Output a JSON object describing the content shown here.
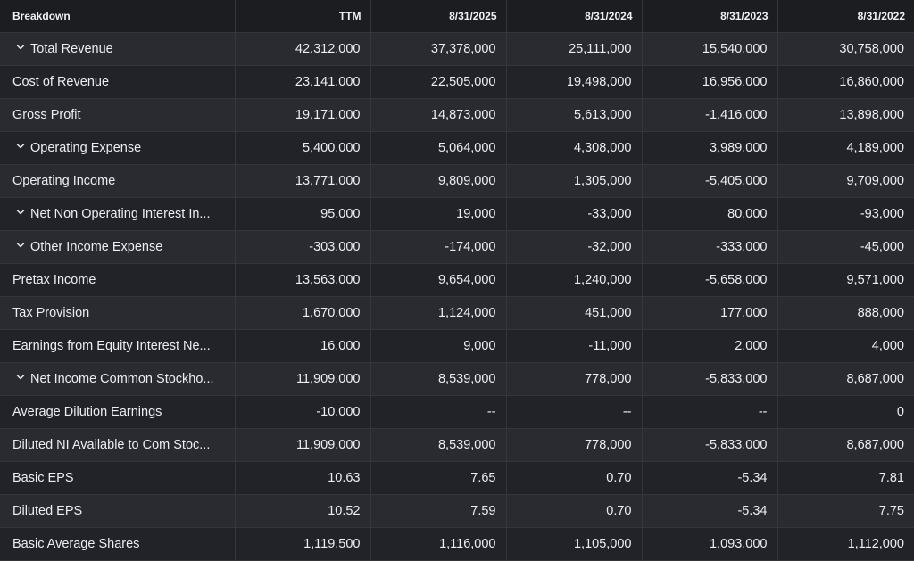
{
  "table": {
    "headers": [
      "Breakdown",
      "TTM",
      "8/31/2025",
      "8/31/2024",
      "8/31/2023",
      "8/31/2022"
    ],
    "rows": [
      {
        "label": "Total Revenue",
        "expandable": true,
        "values": [
          "42,312,000",
          "37,378,000",
          "25,111,000",
          "15,540,000",
          "30,758,000"
        ]
      },
      {
        "label": "Cost of Revenue",
        "expandable": false,
        "values": [
          "23,141,000",
          "22,505,000",
          "19,498,000",
          "16,956,000",
          "16,860,000"
        ]
      },
      {
        "label": "Gross Profit",
        "expandable": false,
        "values": [
          "19,171,000",
          "14,873,000",
          "5,613,000",
          "-1,416,000",
          "13,898,000"
        ]
      },
      {
        "label": "Operating Expense",
        "expandable": true,
        "values": [
          "5,400,000",
          "5,064,000",
          "4,308,000",
          "3,989,000",
          "4,189,000"
        ]
      },
      {
        "label": "Operating Income",
        "expandable": false,
        "values": [
          "13,771,000",
          "9,809,000",
          "1,305,000",
          "-5,405,000",
          "9,709,000"
        ]
      },
      {
        "label": "Net Non Operating Interest In...",
        "expandable": true,
        "values": [
          "95,000",
          "19,000",
          "-33,000",
          "80,000",
          "-93,000"
        ]
      },
      {
        "label": "Other Income Expense",
        "expandable": true,
        "values": [
          "-303,000",
          "-174,000",
          "-32,000",
          "-333,000",
          "-45,000"
        ]
      },
      {
        "label": "Pretax Income",
        "expandable": false,
        "values": [
          "13,563,000",
          "9,654,000",
          "1,240,000",
          "-5,658,000",
          "9,571,000"
        ]
      },
      {
        "label": "Tax Provision",
        "expandable": false,
        "values": [
          "1,670,000",
          "1,124,000",
          "451,000",
          "177,000",
          "888,000"
        ]
      },
      {
        "label": "Earnings from Equity Interest Ne...",
        "expandable": false,
        "values": [
          "16,000",
          "9,000",
          "-11,000",
          "2,000",
          "4,000"
        ]
      },
      {
        "label": "Net Income Common Stockho...",
        "expandable": true,
        "values": [
          "11,909,000",
          "8,539,000",
          "778,000",
          "-5,833,000",
          "8,687,000"
        ]
      },
      {
        "label": "Average Dilution Earnings",
        "expandable": false,
        "values": [
          "-10,000",
          "--",
          "--",
          "--",
          "0"
        ]
      },
      {
        "label": "Diluted NI Available to Com Stoc...",
        "expandable": false,
        "values": [
          "11,909,000",
          "8,539,000",
          "778,000",
          "-5,833,000",
          "8,687,000"
        ]
      },
      {
        "label": "Basic EPS",
        "expandable": false,
        "values": [
          "10.63",
          "7.65",
          "0.70",
          "-5.34",
          "7.81"
        ]
      },
      {
        "label": "Diluted EPS",
        "expandable": false,
        "values": [
          "10.52",
          "7.59",
          "0.70",
          "-5.34",
          "7.75"
        ]
      },
      {
        "label": "Basic Average Shares",
        "expandable": false,
        "values": [
          "1,119,500",
          "1,116,000",
          "1,105,000",
          "1,093,000",
          "1,112,000"
        ]
      }
    ]
  },
  "icons": {
    "expand": "chevron-down-icon"
  },
  "colors": {
    "background": "#1c1d21",
    "row_odd": "#2a2b30",
    "row_even": "#222328",
    "grid_line": "#34363c",
    "text": "#eceef1"
  }
}
